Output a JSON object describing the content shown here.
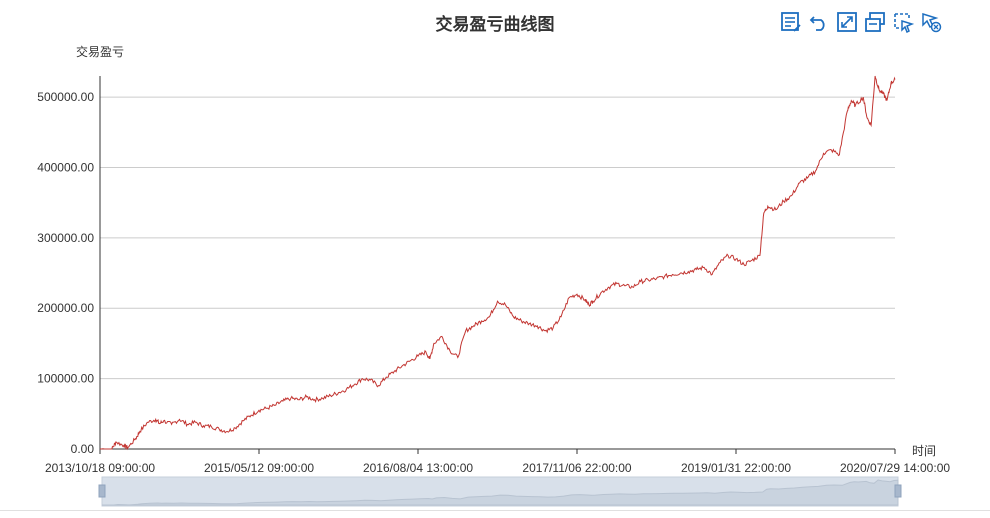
{
  "chart_data": {
    "type": "line",
    "title": "交易盈亏曲线图",
    "ylabel": "交易盈亏",
    "xlabel": "时间",
    "ylim": [
      0,
      530000
    ],
    "y_ticks": [
      "0.00",
      "100000.00",
      "200000.00",
      "300000.00",
      "400000.00",
      "500000.00"
    ],
    "x_tick_labels": [
      "2013/10/18 09:00:00",
      "2015/05/12 09:00:00",
      "2016/08/04 13:00:00",
      "2017/11/06 22:00:00",
      "2019/01/31 22:00:00",
      "2020/07/29 14:00:00"
    ],
    "x_tick_positions": [
      0,
      0.2,
      0.4,
      0.6,
      0.8,
      1.0
    ],
    "grid": "horizontal",
    "line_color": "#c23531",
    "series": [
      {
        "x": [
          0,
          0.015,
          0.02,
          0.03,
          0.035,
          0.045,
          0.05,
          0.06,
          0.07,
          0.075,
          0.08,
          0.09,
          0.1,
          0.11,
          0.12,
          0.13,
          0.14,
          0.15,
          0.16,
          0.17,
          0.18,
          0.19,
          0.2,
          0.21,
          0.22,
          0.23,
          0.24,
          0.25,
          0.26,
          0.27,
          0.28,
          0.29,
          0.3,
          0.31,
          0.32,
          0.33,
          0.34,
          0.35,
          0.36,
          0.37,
          0.38,
          0.39,
          0.4,
          0.41,
          0.415,
          0.42,
          0.43,
          0.44,
          0.45,
          0.46,
          0.47,
          0.48,
          0.49,
          0.5,
          0.51,
          0.52,
          0.53,
          0.54,
          0.55,
          0.56,
          0.57,
          0.58,
          0.59,
          0.6,
          0.61,
          0.615,
          0.62,
          0.63,
          0.64,
          0.65,
          0.66,
          0.67,
          0.68,
          0.69,
          0.7,
          0.71,
          0.72,
          0.73,
          0.74,
          0.75,
          0.76,
          0.77,
          0.78,
          0.79,
          0.8,
          0.81,
          0.82,
          0.83,
          0.835,
          0.84,
          0.85,
          0.86,
          0.87,
          0.88,
          0.89,
          0.9,
          0.91,
          0.92,
          0.93,
          0.94,
          0.945,
          0.95,
          0.96,
          0.965,
          0.97,
          0.975,
          0.98,
          0.985,
          0.99,
          0.995,
          1.0
        ],
        "values": [
          0,
          0,
          10000,
          5000,
          2000,
          15000,
          25000,
          38000,
          42000,
          36000,
          40000,
          35000,
          42000,
          35000,
          38000,
          33000,
          32000,
          28000,
          25000,
          30000,
          40000,
          48000,
          55000,
          58000,
          62000,
          68000,
          72000,
          70000,
          74000,
          70000,
          72000,
          76000,
          80000,
          85000,
          92000,
          100000,
          98000,
          90000,
          102000,
          110000,
          118000,
          125000,
          132000,
          138000,
          128000,
          150000,
          160000,
          140000,
          130000,
          168000,
          175000,
          182000,
          188000,
          210000,
          205000,
          188000,
          182000,
          178000,
          175000,
          168000,
          172000,
          188000,
          215000,
          220000,
          212000,
          205000,
          210000,
          222000,
          230000,
          235000,
          232000,
          230000,
          238000,
          240000,
          242000,
          245000,
          248000,
          250000,
          252000,
          255000,
          258000,
          248000,
          265000,
          275000,
          270000,
          262000,
          268000,
          275000,
          335000,
          345000,
          340000,
          352000,
          360000,
          378000,
          385000,
          395000,
          420000,
          425000,
          418000,
          480000,
          495000,
          488000,
          500000,
          470000,
          460000,
          530000,
          510000,
          505000,
          495000,
          520000,
          525000
        ]
      }
    ]
  },
  "toolbox": {
    "icons": [
      "data-view-icon",
      "restore-icon",
      "zoom-icon",
      "print-icon",
      "select-icon",
      "clear-select-icon"
    ]
  }
}
